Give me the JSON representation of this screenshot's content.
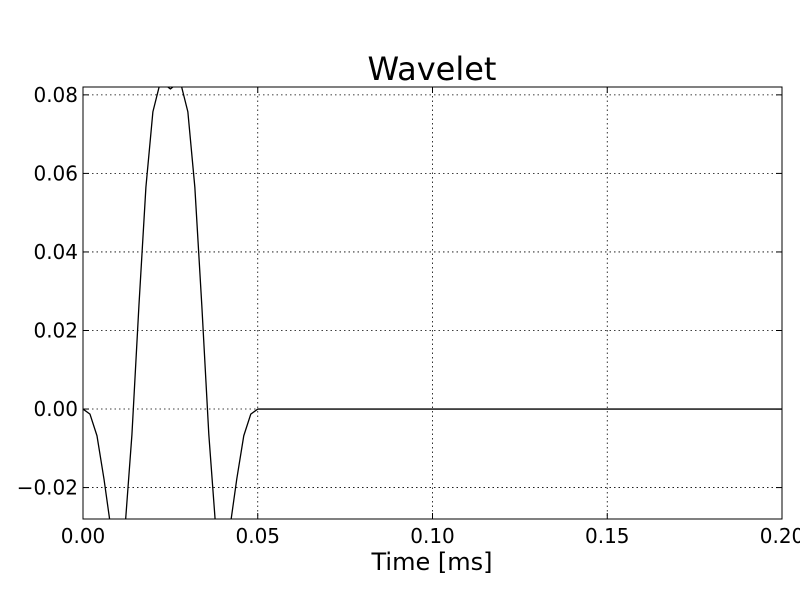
{
  "chart_data": {
    "type": "line",
    "title": "Wavelet",
    "xlabel": "Time [ms]",
    "ylabel": "",
    "xlim": [
      0,
      0.2
    ],
    "ylim": [
      -0.028,
      0.082
    ],
    "grid": true,
    "xticks": [
      0.0,
      0.05,
      0.1,
      0.15,
      0.2
    ],
    "xtick_labels": [
      "0.00",
      "0.05",
      "0.10",
      "0.15",
      "0.20"
    ],
    "yticks": [
      -0.02,
      0.0,
      0.02,
      0.04,
      0.06,
      0.08
    ],
    "ytick_labels": [
      "−0.02",
      "0.00",
      "0.02",
      "0.04",
      "0.06",
      "0.08"
    ],
    "series": [
      {
        "color": "#000000",
        "x": [
          0.0,
          0.002,
          0.004,
          0.006,
          0.008,
          0.01,
          0.012,
          0.014,
          0.016,
          0.018,
          0.02,
          0.022,
          0.024,
          0.025,
          0.026,
          0.028,
          0.03,
          0.032,
          0.034,
          0.036,
          0.038,
          0.04,
          0.042,
          0.044,
          0.046,
          0.048,
          0.05,
          0.06,
          0.08,
          0.1,
          0.12,
          0.14,
          0.16,
          0.18,
          0.2
        ],
        "values": [
          0.0,
          -0.0013,
          -0.0068,
          -0.0178,
          -0.0305,
          -0.0374,
          -0.0305,
          -0.0065,
          0.0263,
          0.0565,
          0.0757,
          0.0828,
          0.0822,
          0.0815,
          0.0822,
          0.0828,
          0.0757,
          0.0565,
          0.0263,
          -0.0065,
          -0.0305,
          -0.0374,
          -0.0305,
          -0.0178,
          -0.0068,
          -0.0013,
          0.0,
          0.0,
          0.0,
          0.0,
          0.0,
          0.0,
          0.0,
          0.0,
          0.0
        ]
      }
    ]
  }
}
